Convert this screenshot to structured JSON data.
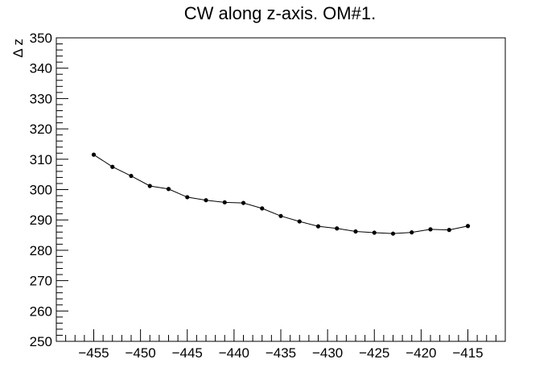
{
  "chart_data": {
    "type": "line",
    "title": "CW along z-axis. OM#1.",
    "xlabel": "",
    "ylabel": "Δ z",
    "xlim": [
      -459,
      -411
    ],
    "ylim": [
      250,
      350
    ],
    "xticks": [
      -455,
      -450,
      -445,
      -440,
      -435,
      -430,
      -425,
      -420,
      -415
    ],
    "yticks": [
      250,
      260,
      270,
      280,
      290,
      300,
      310,
      320,
      330,
      340,
      350
    ],
    "grid": false,
    "series": [
      {
        "name": "OM#1",
        "color": "#000000",
        "x": [
          -455,
          -453,
          -451,
          -449,
          -447,
          -445,
          -443,
          -441,
          -439,
          -437,
          -435,
          -433,
          -431,
          -429,
          -427,
          -425,
          -423,
          -421,
          -419,
          -417,
          -415
        ],
        "y": [
          311.5,
          307.5,
          304.5,
          301.2,
          300.2,
          297.5,
          296.5,
          295.8,
          295.6,
          293.8,
          291.3,
          289.5,
          287.9,
          287.2,
          286.2,
          285.8,
          285.5,
          285.9,
          286.9,
          286.7,
          288.0
        ]
      }
    ]
  }
}
